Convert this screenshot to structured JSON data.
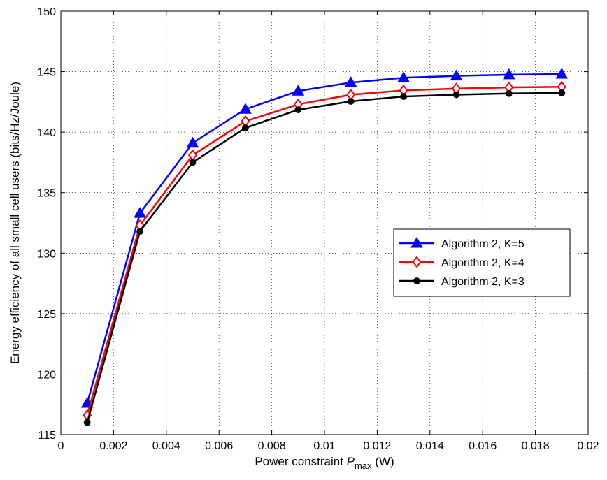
{
  "chart_data": {
    "type": "line",
    "xlabel": {
      "main": "Power constraint ",
      "var": "P",
      "sub": "max",
      "unit": " (W)"
    },
    "ylabel": "Energy efficiency of all small cell users (bits/Hz/Joule)",
    "xlim": [
      0,
      0.02
    ],
    "ylim": [
      115,
      150
    ],
    "x_ticks": [
      "0",
      "0.002",
      "0.004",
      "0.006",
      "0.008",
      "0.01",
      "0.012",
      "0.014",
      "0.016",
      "0.018",
      "0.02"
    ],
    "y_ticks": [
      "115",
      "120",
      "125",
      "130",
      "135",
      "140",
      "145",
      "150"
    ],
    "grid": true,
    "legend_position": "center-right",
    "x": [
      0.001,
      0.003,
      0.005,
      0.007,
      0.009,
      0.011,
      0.013,
      0.015,
      0.017,
      0.019
    ],
    "series": [
      {
        "name": "Algorithm 2, K=5",
        "color": "#0000ff",
        "marker": "triangle",
        "values": [
          117.6,
          133.3,
          139.1,
          141.9,
          143.4,
          144.1,
          144.5,
          144.65,
          144.75,
          144.8
        ]
      },
      {
        "name": "Algorithm 2, K=4",
        "color": "#ff0000",
        "marker": "diamond",
        "values": [
          116.6,
          132.3,
          138.1,
          140.9,
          142.3,
          143.1,
          143.45,
          143.6,
          143.7,
          143.75
        ]
      },
      {
        "name": "Algorithm 2, K=3",
        "color": "#000000",
        "marker": "circle",
        "values": [
          116.0,
          131.8,
          137.5,
          140.35,
          141.85,
          142.55,
          142.95,
          143.1,
          143.2,
          143.25
        ]
      }
    ]
  }
}
